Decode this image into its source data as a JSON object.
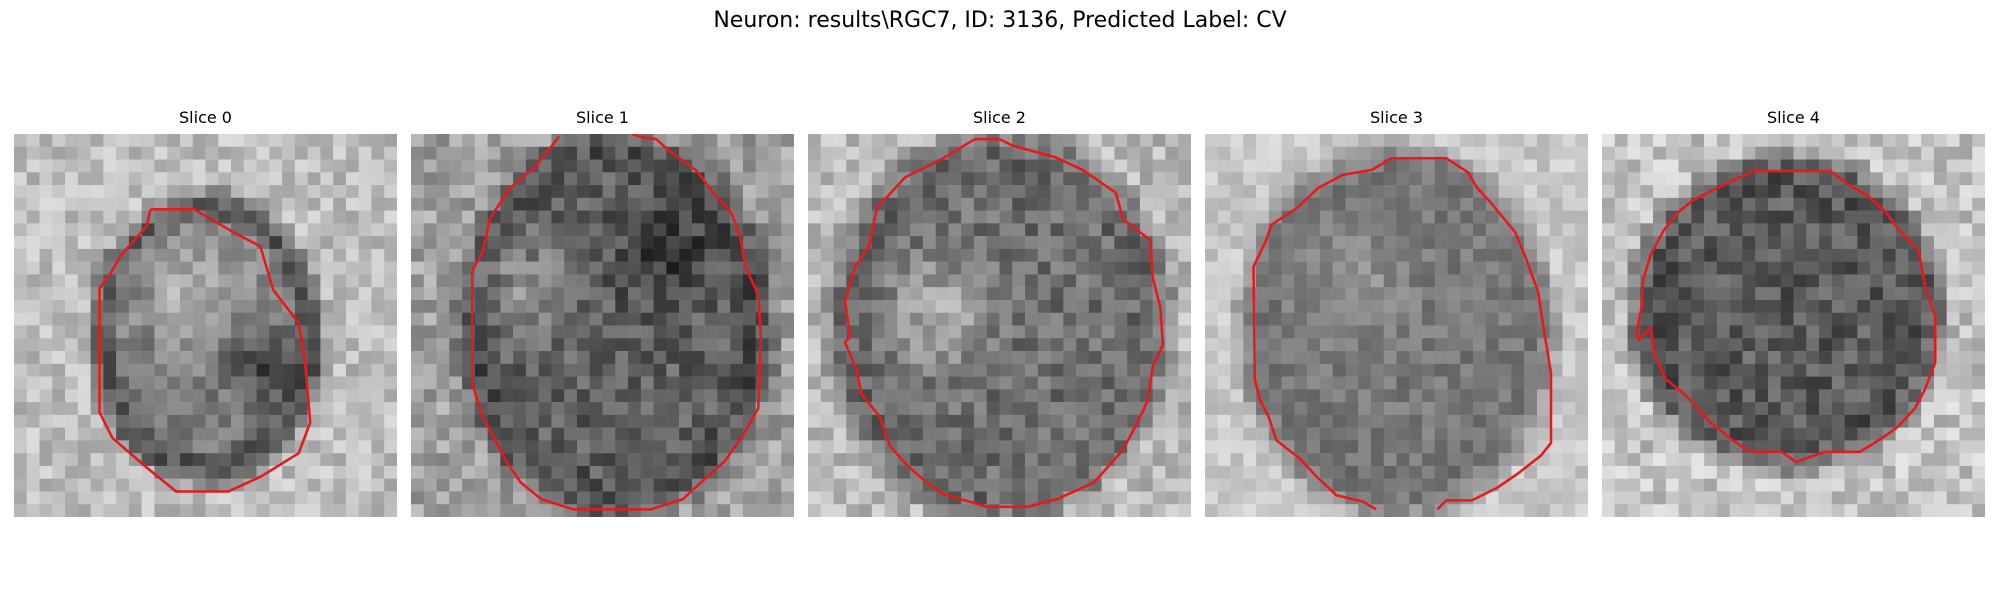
{
  "figure": {
    "title": "Neuron: results\\RGC7, ID: 3136, Predicted Label: CV"
  },
  "slices": [
    {
      "title": "Slice 0"
    },
    {
      "title": "Slice 1"
    },
    {
      "title": "Slice 2"
    },
    {
      "title": "Slice 3"
    },
    {
      "title": "Slice 4"
    }
  ],
  "colors": {
    "contour": "#e8191c",
    "colormap": "grayscale"
  }
}
